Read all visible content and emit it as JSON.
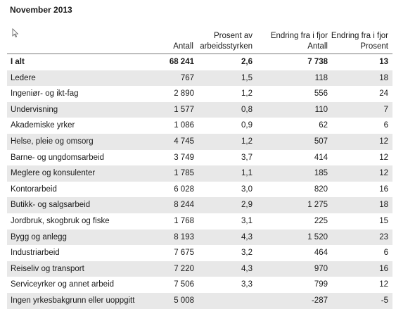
{
  "title": "November 2013",
  "columns": {
    "antall": "Antall",
    "prosent_line1": "Prosent av",
    "prosent_line2": "arbeidsstyrken",
    "endring_antall_line1": "Endring fra i fjor",
    "endring_antall_line2": "Antall",
    "endring_prosent_line1": "Endring fra i fjor",
    "endring_prosent_line2": "Prosent"
  },
  "rows": [
    {
      "label": "I alt",
      "antall": "68 241",
      "prosent": "2,6",
      "endring_antall": "7 738",
      "endring_prosent": "13"
    },
    {
      "label": "Ledere",
      "antall": "767",
      "prosent": "1,5",
      "endring_antall": "118",
      "endring_prosent": "18"
    },
    {
      "label": "Ingeniør- og ikt-fag",
      "antall": "2 890",
      "prosent": "1,2",
      "endring_antall": "556",
      "endring_prosent": "24"
    },
    {
      "label": "Undervisning",
      "antall": "1 577",
      "prosent": "0,8",
      "endring_antall": "110",
      "endring_prosent": "7"
    },
    {
      "label": "Akademiske yrker",
      "antall": "1 086",
      "prosent": "0,9",
      "endring_antall": "62",
      "endring_prosent": "6"
    },
    {
      "label": "Helse, pleie og omsorg",
      "antall": "4 745",
      "prosent": "1,2",
      "endring_antall": "507",
      "endring_prosent": "12"
    },
    {
      "label": "Barne- og ungdomsarbeid",
      "antall": "3 749",
      "prosent": "3,7",
      "endring_antall": "414",
      "endring_prosent": "12"
    },
    {
      "label": "Meglere og konsulenter",
      "antall": "1 785",
      "prosent": "1,1",
      "endring_antall": "185",
      "endring_prosent": "12"
    },
    {
      "label": "Kontorarbeid",
      "antall": "6 028",
      "prosent": "3,0",
      "endring_antall": "820",
      "endring_prosent": "16"
    },
    {
      "label": "Butikk- og salgsarbeid",
      "antall": "8 244",
      "prosent": "2,9",
      "endring_antall": "1 275",
      "endring_prosent": "18"
    },
    {
      "label": "Jordbruk, skogbruk og fiske",
      "antall": "1 768",
      "prosent": "3,1",
      "endring_antall": "225",
      "endring_prosent": "15"
    },
    {
      "label": "Bygg og anlegg",
      "antall": "8 193",
      "prosent": "4,3",
      "endring_antall": "1 520",
      "endring_prosent": "23"
    },
    {
      "label": "Industriarbeid",
      "antall": "7 675",
      "prosent": "3,2",
      "endring_antall": "464",
      "endring_prosent": "6"
    },
    {
      "label": "Reiseliv og transport",
      "antall": "7 220",
      "prosent": "4,3",
      "endring_antall": "970",
      "endring_prosent": "16"
    },
    {
      "label": "Serviceyrker og annet arbeid",
      "antall": "7 506",
      "prosent": "3,3",
      "endring_antall": "799",
      "endring_prosent": "12"
    },
    {
      "label": "Ingen yrkesbakgrunn eller uoppgitt",
      "antall": "5 008",
      "prosent": "",
      "endring_antall": "-287",
      "endring_prosent": "-5"
    }
  ]
}
